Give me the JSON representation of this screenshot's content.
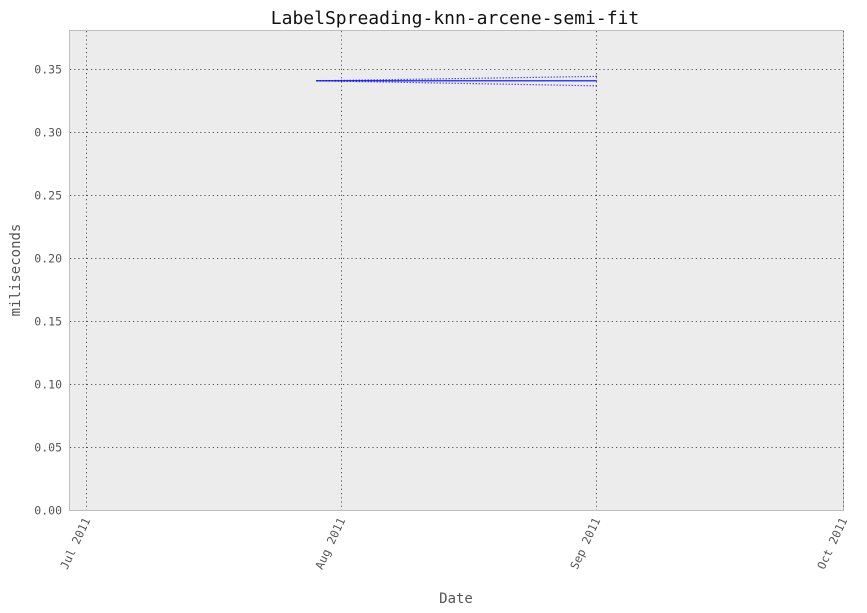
{
  "chart_data": {
    "type": "line",
    "title": "LabelSpreading-knn-arcene-semi-fit",
    "xlabel": "Date",
    "ylabel": "miliseconds",
    "x_axis": {
      "kind": "date",
      "range": [
        "2011-06-29",
        "2011-10-01"
      ],
      "ticks": [
        {
          "date": "2011-07-01",
          "label": "Jul 2011"
        },
        {
          "date": "2011-08-01",
          "label": "Aug 2011"
        },
        {
          "date": "2011-09-01",
          "label": "Sep 2011"
        },
        {
          "date": "2011-10-01",
          "label": "Oct 2011"
        }
      ]
    },
    "y_axis": {
      "range": [
        0,
        0.38
      ],
      "ticks": [
        "0.00",
        "0.05",
        "0.10",
        "0.15",
        "0.20",
        "0.25",
        "0.30",
        "0.35"
      ]
    },
    "grid": true,
    "background": "#ececec",
    "series": [
      {
        "role": "mean",
        "style": "solid",
        "color": "#0000ff",
        "points": [
          {
            "x": "2011-07-29",
            "y": 0.3405
          },
          {
            "x": "2011-09-01",
            "y": 0.3405
          }
        ]
      },
      {
        "role": "upper",
        "style": "dotted",
        "color": "#0000ff",
        "points": [
          {
            "x": "2011-07-29",
            "y": 0.3405
          },
          {
            "x": "2011-09-01",
            "y": 0.344
          }
        ]
      },
      {
        "role": "lower",
        "style": "dotted",
        "color": "#0000ff",
        "points": [
          {
            "x": "2011-07-29",
            "y": 0.3405
          },
          {
            "x": "2011-09-01",
            "y": 0.3365
          }
        ]
      }
    ]
  }
}
